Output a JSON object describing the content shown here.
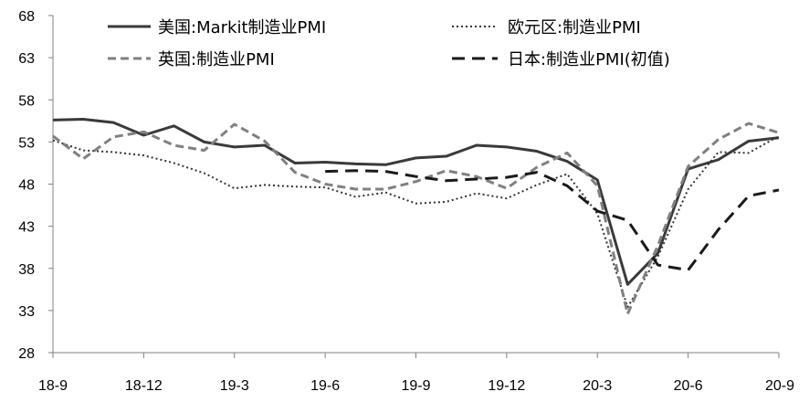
{
  "chart_data": {
    "type": "line",
    "title": "",
    "xlabel": "",
    "ylabel": "",
    "ylim": [
      28,
      68
    ],
    "yticks": [
      28,
      33,
      38,
      43,
      48,
      53,
      58,
      63,
      68
    ],
    "categories": [
      "18-9",
      "18-10",
      "18-11",
      "18-12",
      "19-1",
      "19-2",
      "19-3",
      "19-4",
      "19-5",
      "19-6",
      "19-7",
      "19-8",
      "19-9",
      "19-10",
      "19-11",
      "19-12",
      "20-1",
      "20-2",
      "20-3",
      "20-4",
      "20-5",
      "20-6",
      "20-7",
      "20-8",
      "20-9"
    ],
    "xtick_labels": [
      "18-9",
      "18-12",
      "19-3",
      "19-6",
      "19-9",
      "19-12",
      "20-3",
      "20-6",
      "20-9"
    ],
    "grid": false,
    "legend_position": "top",
    "series": [
      {
        "name": "美国:Markit制造业PMI",
        "style": "solid",
        "color": "#3a3a3a",
        "values": [
          55.6,
          55.7,
          55.3,
          53.8,
          54.9,
          53.0,
          52.4,
          52.6,
          50.5,
          50.6,
          50.4,
          50.3,
          51.1,
          51.3,
          52.6,
          52.4,
          51.9,
          50.7,
          48.5,
          36.1,
          39.8,
          49.8,
          50.9,
          53.1,
          53.5
        ]
      },
      {
        "name": "欧元区:制造业PMI",
        "style": "dotted",
        "color": "#333333",
        "values": [
          53.2,
          52.0,
          51.8,
          51.4,
          50.5,
          49.3,
          47.5,
          47.9,
          47.7,
          47.6,
          46.5,
          47.0,
          45.7,
          45.9,
          46.9,
          46.3,
          47.9,
          49.2,
          44.5,
          33.4,
          39.4,
          47.4,
          51.8,
          51.7,
          53.7
        ]
      },
      {
        "name": "英国:制造业PMI",
        "style": "dashed",
        "color": "#808080",
        "values": [
          53.7,
          51.0,
          53.6,
          54.2,
          52.6,
          52.0,
          55.1,
          53.1,
          49.4,
          48.0,
          47.4,
          47.4,
          48.3,
          49.6,
          48.9,
          47.5,
          50.0,
          51.7,
          47.8,
          32.6,
          40.7,
          50.1,
          53.3,
          55.2,
          54.1
        ]
      },
      {
        "name": "日本:制造业PMI(初值)",
        "style": "long-dash",
        "color": "#1a1a1a",
        "values": [
          null,
          null,
          null,
          null,
          null,
          null,
          null,
          null,
          null,
          49.5,
          49.6,
          49.5,
          48.9,
          48.4,
          48.6,
          48.8,
          49.4,
          47.8,
          44.8,
          43.7,
          38.4,
          37.8,
          42.6,
          46.6,
          47.3
        ]
      }
    ]
  }
}
